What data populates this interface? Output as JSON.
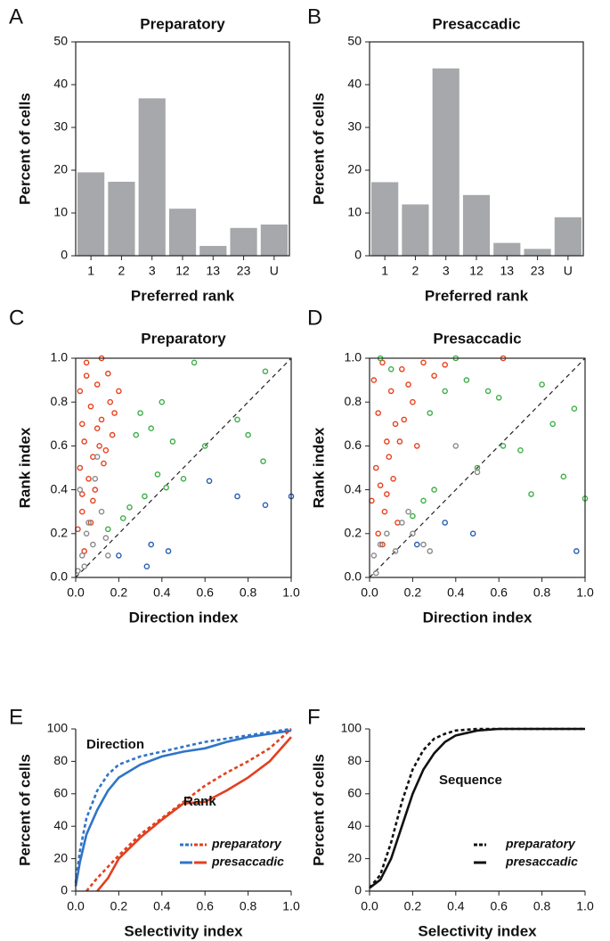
{
  "chart_data": [
    {
      "type": "bar",
      "label": "A",
      "title": "Preparatory",
      "x_label": "Preferred rank",
      "y_label": "Percent of cells",
      "categories": [
        "1",
        "2",
        "3",
        "12",
        "13",
        "23",
        "U"
      ],
      "values": [
        19.5,
        17.3,
        36.8,
        11,
        2.3,
        6.5,
        7.3
      ],
      "color": "#a6a8ab",
      "ylim": [
        0,
        50
      ],
      "yticks": [
        0,
        10,
        20,
        30,
        40,
        50
      ]
    },
    {
      "type": "bar",
      "label": "B",
      "title": "Presaccadic",
      "x_label": "Preferred rank",
      "y_label": "Percent of cells",
      "categories": [
        "1",
        "2",
        "3",
        "12",
        "13",
        "23",
        "U"
      ],
      "values": [
        17.2,
        12,
        43.8,
        14.2,
        3,
        1.6,
        9
      ],
      "color": "#a6a8ab",
      "ylim": [
        0,
        50
      ],
      "yticks": [
        0,
        10,
        20,
        30,
        40,
        50
      ]
    },
    {
      "type": "scatter",
      "label": "C",
      "title": "Preparatory",
      "x_label": "Direction index",
      "y_label": "Rank index",
      "diagonal": true,
      "xlim": [
        0,
        1
      ],
      "ylim": [
        0,
        1
      ],
      "xticks": [
        {
          "value": 0,
          "label": "0.0"
        },
        0.2,
        0.4,
        0.6,
        0.8,
        {
          "value": 1,
          "label": "1.0"
        }
      ],
      "yticks": [
        {
          "value": 0,
          "label": "0.0"
        },
        0.2,
        0.4,
        0.6,
        0.8,
        {
          "value": 1,
          "label": "1.0"
        }
      ],
      "series": [
        {
          "color": "#e8401c",
          "x": [
            0.02,
            0.03,
            0.05,
            0.04,
            0.07,
            0.08,
            0.1,
            0.12,
            0.15,
            0.17,
            0.2,
            0.06,
            0.09,
            0.13,
            0.03,
            0.01,
            0.11,
            0.14,
            0.05,
            0.08,
            0.18,
            0.02,
            0.16,
            0.04,
            0.1,
            0.12,
            0.07,
            0.03
          ],
          "values": [
            0.85,
            0.7,
            0.92,
            0.62,
            0.78,
            0.55,
            0.88,
            0.72,
            0.93,
            0.65,
            0.85,
            0.45,
            0.4,
            0.52,
            0.3,
            0.22,
            0.6,
            0.58,
            0.98,
            0.35,
            0.75,
            0.5,
            0.8,
            0.12,
            0.68,
            1.0,
            0.25,
            0.38
          ]
        },
        {
          "color": "#3fae49",
          "x": [
            0.3,
            0.35,
            0.4,
            0.45,
            0.55,
            0.6,
            0.75,
            0.8,
            0.88,
            0.87,
            0.5,
            0.32,
            0.38,
            0.22,
            0.15,
            0.25,
            0.42,
            0.28
          ],
          "values": [
            0.75,
            0.68,
            0.8,
            0.62,
            0.98,
            0.6,
            0.72,
            0.65,
            0.94,
            0.53,
            0.45,
            0.37,
            0.47,
            0.27,
            0.22,
            0.32,
            0.41,
            0.65
          ]
        },
        {
          "color": "#2a5db0",
          "x": [
            0.62,
            0.75,
            0.88,
            1.0,
            0.33,
            0.43,
            0.2,
            0.35
          ],
          "values": [
            0.44,
            0.37,
            0.33,
            0.37,
            0.05,
            0.12,
            0.1,
            0.15
          ]
        },
        {
          "color": "#8a8a8a",
          "x": [
            0.01,
            0.03,
            0.05,
            0.08,
            0.12,
            0.15,
            0.02,
            0.1,
            0.06,
            0.04,
            0.14,
            0.09
          ],
          "values": [
            0.03,
            0.1,
            0.2,
            0.15,
            0.3,
            0.1,
            0.4,
            0.55,
            0.25,
            0.05,
            0.18,
            0.45
          ]
        }
      ]
    },
    {
      "type": "scatter",
      "label": "D",
      "title": "Presaccadic",
      "x_label": "Direction index",
      "y_label": "Rank index",
      "diagonal": true,
      "xlim": [
        0,
        1
      ],
      "ylim": [
        0,
        1
      ],
      "xticks": [
        {
          "value": 0,
          "label": "0.0"
        },
        0.2,
        0.4,
        0.6,
        0.8,
        {
          "value": 1,
          "label": "1.0"
        }
      ],
      "yticks": [
        {
          "value": 0,
          "label": "0.0"
        },
        0.2,
        0.4,
        0.6,
        0.8,
        {
          "value": 1,
          "label": "1.0"
        }
      ],
      "series": [
        {
          "color": "#e8401c",
          "x": [
            0.02,
            0.04,
            0.06,
            0.08,
            0.1,
            0.12,
            0.15,
            0.18,
            0.2,
            0.25,
            0.03,
            0.05,
            0.07,
            0.09,
            0.11,
            0.14,
            0.16,
            0.01,
            0.13,
            0.3,
            0.22,
            0.04,
            0.06,
            0.08,
            0.62,
            0.35
          ],
          "values": [
            0.9,
            0.75,
            0.98,
            0.62,
            0.85,
            0.7,
            0.95,
            0.88,
            0.8,
            0.98,
            0.5,
            0.42,
            0.3,
            0.55,
            0.45,
            0.62,
            0.72,
            0.35,
            0.25,
            0.92,
            0.6,
            0.2,
            0.15,
            0.38,
            1.0,
            0.97
          ]
        },
        {
          "color": "#3fae49",
          "x": [
            0.05,
            0.1,
            0.28,
            0.35,
            0.4,
            0.45,
            0.55,
            0.6,
            0.62,
            0.7,
            0.8,
            0.85,
            0.9,
            0.95,
            1.0,
            0.75,
            0.5,
            0.3,
            0.25,
            0.2
          ],
          "values": [
            1.0,
            0.95,
            0.75,
            0.85,
            1.0,
            0.9,
            0.85,
            0.82,
            0.6,
            0.58,
            0.88,
            0.7,
            0.46,
            0.77,
            0.36,
            0.38,
            0.5,
            0.4,
            0.35,
            0.28
          ]
        },
        {
          "color": "#2a5db0",
          "x": [
            0.22,
            0.35,
            0.48,
            0.96
          ],
          "values": [
            0.15,
            0.25,
            0.2,
            0.12
          ]
        },
        {
          "color": "#8a8a8a",
          "x": [
            0.02,
            0.05,
            0.08,
            0.12,
            0.15,
            0.2,
            0.25,
            0.28,
            0.4,
            0.5,
            0.03,
            0.18
          ],
          "values": [
            0.1,
            0.15,
            0.2,
            0.12,
            0.25,
            0.2,
            0.15,
            0.12,
            0.6,
            0.48,
            0.02,
            0.3
          ]
        }
      ]
    },
    {
      "type": "line",
      "label": "E",
      "x_label": "Selectivity index",
      "y_label": "Percent of cells",
      "xlim": [
        0,
        1
      ],
      "ylim": [
        0,
        100
      ],
      "xticks": [
        {
          "value": 0,
          "label": "0.0"
        },
        0.2,
        0.4,
        0.6,
        0.8,
        {
          "value": 1,
          "label": "1.0"
        }
      ],
      "yticks": [
        0,
        20,
        40,
        60,
        80,
        100
      ],
      "annotations": [
        "Direction",
        "Rank"
      ],
      "legend_position": "lower right",
      "legend": [
        {
          "label": "preparatory",
          "dashed": true,
          "colors": [
            "#2f74c8",
            "#e2401f"
          ]
        },
        {
          "label": "presaccadic",
          "dashed": false,
          "colors": [
            "#2f74c8",
            "#e2401f"
          ]
        }
      ],
      "series": [
        {
          "color": "#2f74c8",
          "dashed": true,
          "x": [
            0,
            0.02,
            0.05,
            0.1,
            0.15,
            0.2,
            0.3,
            0.4,
            0.5,
            0.6,
            0.7,
            0.8,
            0.9,
            1.0
          ],
          "values": [
            5,
            25,
            45,
            62,
            72,
            78,
            83,
            86,
            89,
            92,
            94,
            96,
            98,
            100
          ]
        },
        {
          "color": "#2f74c8",
          "dashed": false,
          "x": [
            0,
            0.02,
            0.05,
            0.1,
            0.15,
            0.2,
            0.3,
            0.4,
            0.5,
            0.6,
            0.7,
            0.8,
            0.9,
            1.0
          ],
          "values": [
            3,
            18,
            35,
            50,
            62,
            70,
            78,
            83,
            86,
            88,
            92,
            95,
            97,
            99
          ]
        },
        {
          "color": "#e2401f",
          "dashed": true,
          "x": [
            0.05,
            0.1,
            0.2,
            0.3,
            0.4,
            0.5,
            0.6,
            0.7,
            0.8,
            0.9,
            1.0
          ],
          "values": [
            0,
            8,
            22,
            35,
            45,
            55,
            65,
            73,
            80,
            88,
            100
          ]
        },
        {
          "color": "#e2401f",
          "dashed": false,
          "x": [
            0.1,
            0.15,
            0.2,
            0.3,
            0.4,
            0.5,
            0.6,
            0.7,
            0.8,
            0.9,
            1.0
          ],
          "values": [
            0,
            8,
            20,
            33,
            44,
            54,
            55,
            62,
            70,
            80,
            95
          ]
        }
      ]
    },
    {
      "type": "line",
      "label": "F",
      "x_label": "Selectivity index",
      "y_label": "Percent of cells",
      "xlim": [
        0,
        1
      ],
      "ylim": [
        0,
        100
      ],
      "xticks": [
        {
          "value": 0,
          "label": "0.0"
        },
        0.2,
        0.4,
        0.6,
        0.8,
        {
          "value": 1,
          "label": "1.0"
        }
      ],
      "yticks": [
        0,
        20,
        40,
        60,
        80,
        100
      ],
      "annotations": [
        "Sequence"
      ],
      "legend_position": "lower right",
      "legend": [
        {
          "label": "preparatory",
          "dashed": true,
          "colors": [
            "#111111"
          ]
        },
        {
          "label": "presaccadic",
          "dashed": false,
          "colors": [
            "#111111"
          ]
        }
      ],
      "series": [
        {
          "color": "#111111",
          "dashed": true,
          "x": [
            0,
            0.05,
            0.1,
            0.15,
            0.2,
            0.25,
            0.3,
            0.35,
            0.4,
            0.5,
            0.6,
            1.0
          ],
          "values": [
            2,
            10,
            30,
            55,
            75,
            87,
            94,
            97,
            99,
            100,
            100,
            100
          ]
        },
        {
          "color": "#111111",
          "dashed": false,
          "x": [
            0,
            0.05,
            0.1,
            0.15,
            0.2,
            0.25,
            0.3,
            0.35,
            0.4,
            0.5,
            0.6,
            1.0
          ],
          "values": [
            2,
            7,
            20,
            40,
            60,
            75,
            85,
            92,
            96,
            99,
            100,
            100
          ]
        }
      ]
    }
  ]
}
